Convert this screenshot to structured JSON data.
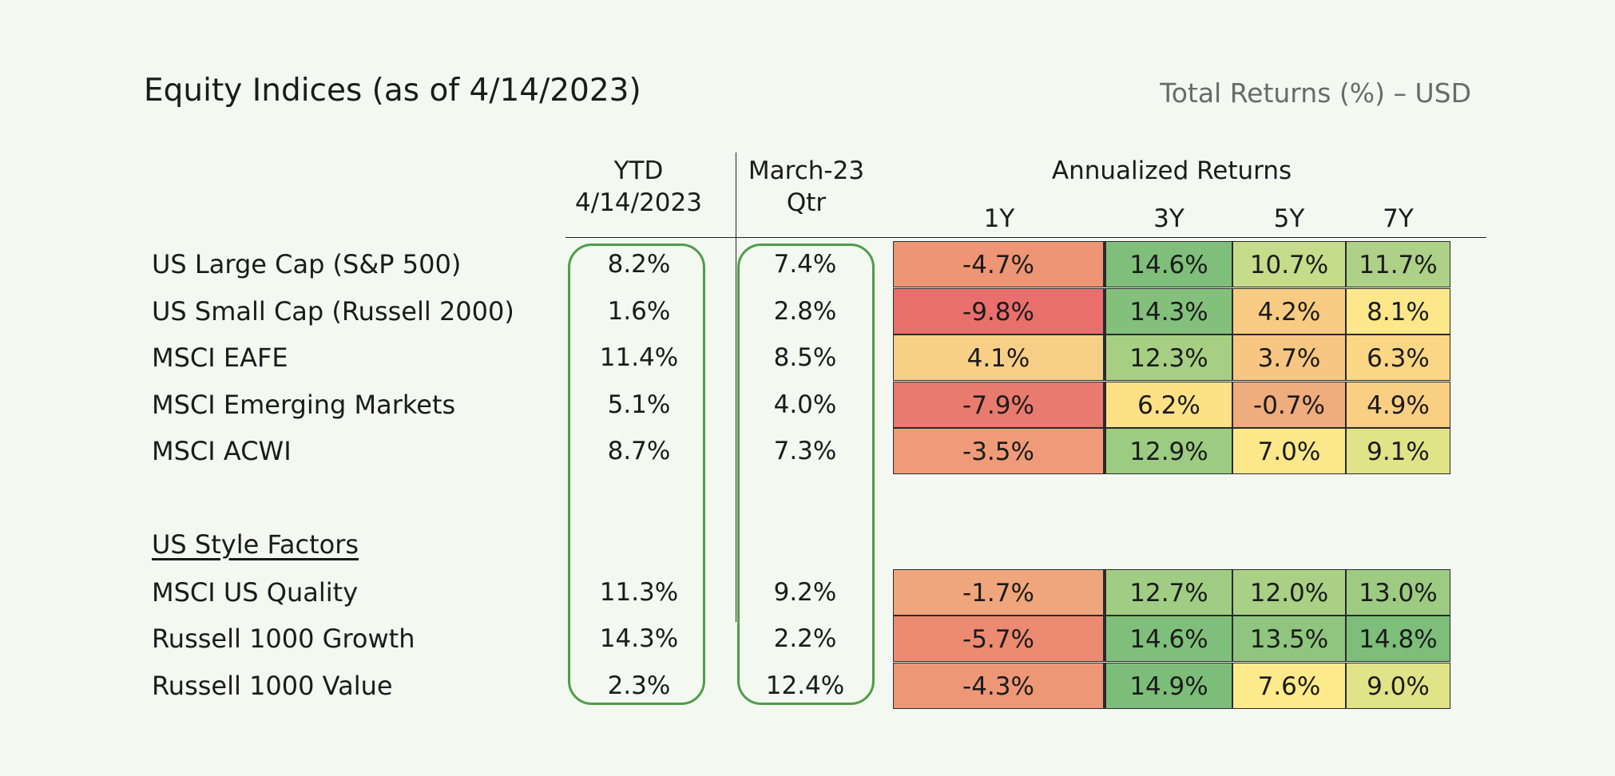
{
  "title": "Equity Indices (as of 4/14/2023)",
  "subtitle": "Total Returns (%) – USD",
  "headers": {
    "ytd_line1": "YTD",
    "ytd_line2": "4/14/2023",
    "qtr_line1": "March-23",
    "qtr_line2": "Qtr",
    "annualized": "Annualized Returns",
    "y1": "1Y",
    "y3": "3Y",
    "y5": "5Y",
    "y7": "7Y"
  },
  "section_heading": "US Style Factors",
  "rows": [
    {
      "label": "US Large Cap (S&P 500)",
      "ytd": "8.2%",
      "qtr": "7.4%",
      "y1": "-4.7%",
      "y3": "14.6%",
      "y5": "10.7%",
      "y7": "11.7%",
      "c1": "#ee9575",
      "c3": "#7fbf7b",
      "c5": "#c5dc8a",
      "c7": "#aed188"
    },
    {
      "label": "US Small Cap (Russell 2000)",
      "ytd": "1.6%",
      "qtr": "2.8%",
      "y1": "-9.8%",
      "y3": "14.3%",
      "y5": "4.2%",
      "y7": "8.1%",
      "c1": "#e86f6c",
      "c3": "#83c07c",
      "c5": "#f7cc82",
      "c7": "#fce88a"
    },
    {
      "label": "MSCI EAFE",
      "ytd": "11.4%",
      "qtr": "8.5%",
      "y1": "4.1%",
      "y3": "12.3%",
      "y5": "3.7%",
      "y7": "6.3%",
      "c1": "#f7cf86",
      "c3": "#a6cf84",
      "c5": "#f7c682",
      "c7": "#fad685"
    },
    {
      "label": "MSCI Emerging Markets",
      "ytd": "5.1%",
      "qtr": "4.0%",
      "y1": "-7.9%",
      "y3": "6.2%",
      "y5": "-0.7%",
      "y7": "4.9%",
      "c1": "#e97a6e",
      "c3": "#fde186",
      "c5": "#efac7c",
      "c7": "#f9cf84"
    },
    {
      "label": "MSCI ACWI",
      "ytd": "8.7%",
      "qtr": "7.3%",
      "y1": "-3.5%",
      "y3": "12.9%",
      "y5": "7.0%",
      "y7": "9.1%",
      "c1": "#ef9b79",
      "c3": "#9ccb82",
      "c5": "#fde78b",
      "c7": "#e0e388"
    },
    {
      "label": "MSCI US Quality",
      "ytd": "11.3%",
      "qtr": "9.2%",
      "y1": "-1.7%",
      "y3": "12.7%",
      "y5": "12.0%",
      "y7": "13.0%",
      "c1": "#f0a67c",
      "c3": "#a0cd83",
      "c5": "#a9d084",
      "c7": "#9dcb82"
    },
    {
      "label": "Russell 1000 Growth",
      "ytd": "14.3%",
      "qtr": "2.2%",
      "y1": "-5.7%",
      "y3": "14.6%",
      "y5": "13.5%",
      "y7": "14.8%",
      "c1": "#ed8a72",
      "c3": "#80bf7b",
      "c5": "#8fc57f",
      "c7": "#7dbe7a"
    },
    {
      "label": "Russell 1000 Value",
      "ytd": "2.3%",
      "qtr": "12.4%",
      "y1": "-4.3%",
      "y3": "14.9%",
      "y5": "7.6%",
      "y7": "9.0%",
      "c1": "#ee9777",
      "c3": "#7cbd7a",
      "c5": "#fdea8b",
      "c7": "#e1e388"
    }
  ]
}
